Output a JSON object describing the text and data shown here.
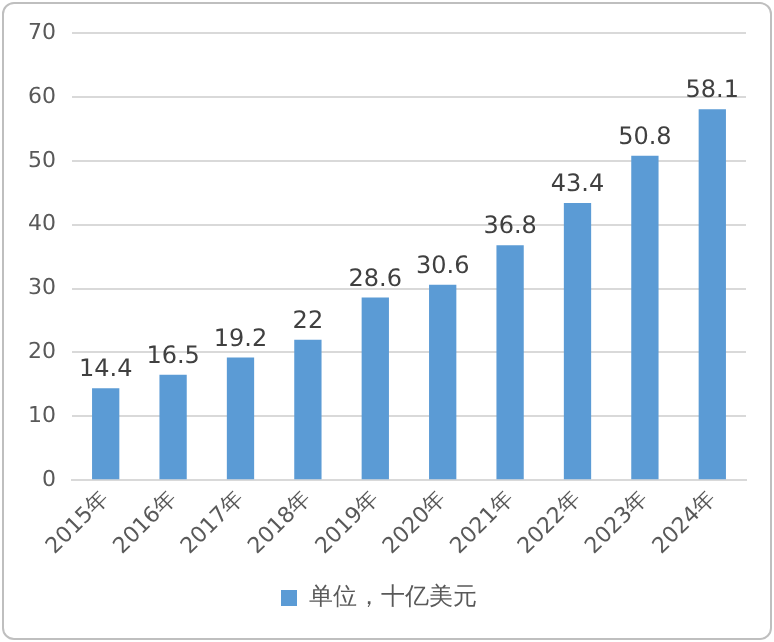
{
  "chart_data": {
    "type": "bar",
    "categories": [
      "2015年",
      "2016年",
      "2017年",
      "2018年",
      "2019年",
      "2020年",
      "2021年",
      "2022年",
      "2023年",
      "2024年"
    ],
    "series": [
      {
        "name": "单位，十亿美元",
        "color": "#5b9bd5",
        "values": [
          14.4,
          16.5,
          19.2,
          22,
          28.6,
          30.6,
          36.8,
          43.4,
          50.8,
          58.1
        ]
      }
    ],
    "ylim": [
      0,
      70
    ],
    "yticks": [
      0,
      10,
      20,
      30,
      40,
      50,
      60,
      70
    ],
    "grid": "y",
    "legend": "bottom",
    "data_labels": true
  }
}
